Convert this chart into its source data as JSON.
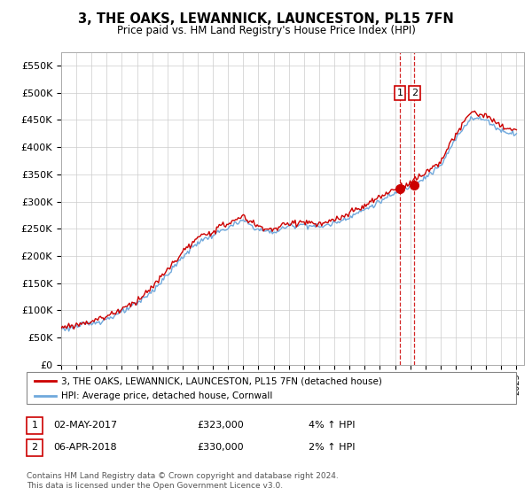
{
  "title": "3, THE OAKS, LEWANNICK, LAUNCESTON, PL15 7FN",
  "subtitle": "Price paid vs. HM Land Registry's House Price Index (HPI)",
  "legend_label1": "3, THE OAKS, LEWANNICK, LAUNCESTON, PL15 7FN (detached house)",
  "legend_label2": "HPI: Average price, detached house, Cornwall",
  "transaction1_date": "02-MAY-2017",
  "transaction1_price": "£323,000",
  "transaction1_change": "4% ↑ HPI",
  "transaction2_date": "06-APR-2018",
  "transaction2_price": "£330,000",
  "transaction2_change": "2% ↑ HPI",
  "footer": "Contains HM Land Registry data © Crown copyright and database right 2024.\nThis data is licensed under the Open Government Licence v3.0.",
  "hpi_color": "#6fa8dc",
  "price_color": "#cc0000",
  "marker_color": "#cc0000",
  "vline_color": "#cc0000",
  "ylim": [
    0,
    575000
  ],
  "yticks": [
    0,
    50000,
    100000,
    150000,
    200000,
    250000,
    300000,
    350000,
    400000,
    450000,
    500000,
    550000
  ],
  "xlim_start": 1995.0,
  "xlim_end": 2025.5,
  "transaction1_x": 2017.33,
  "transaction1_y": 323000,
  "transaction2_x": 2018.27,
  "transaction2_y": 330000,
  "background_color": "#ffffff",
  "grid_color": "#cccccc",
  "hpi_anchor_years": [
    1995,
    1996,
    1997,
    1998,
    1999,
    2000,
    2001,
    2002,
    2003,
    2004,
    2005,
    2006,
    2007,
    2008,
    2009,
    2010,
    2011,
    2012,
    2013,
    2014,
    2015,
    2016,
    2017,
    2018,
    2019,
    2020,
    2021,
    2022,
    2023,
    2024,
    2025
  ],
  "hpi_anchor_vals": [
    65000,
    70000,
    76000,
    84000,
    96000,
    112000,
    135000,
    165000,
    198000,
    225000,
    238000,
    252000,
    265000,
    248000,
    243000,
    255000,
    258000,
    253000,
    260000,
    272000,
    285000,
    300000,
    315000,
    328000,
    345000,
    365000,
    415000,
    455000,
    450000,
    430000,
    425000
  ],
  "price_anchor_vals": [
    68000,
    73000,
    80000,
    89000,
    102000,
    118000,
    142000,
    174000,
    207000,
    232000,
    246000,
    260000,
    272000,
    254000,
    248000,
    260000,
    263000,
    257000,
    265000,
    278000,
    292000,
    308000,
    323000,
    335000,
    353000,
    374000,
    422000,
    465000,
    458000,
    437000,
    432000
  ]
}
